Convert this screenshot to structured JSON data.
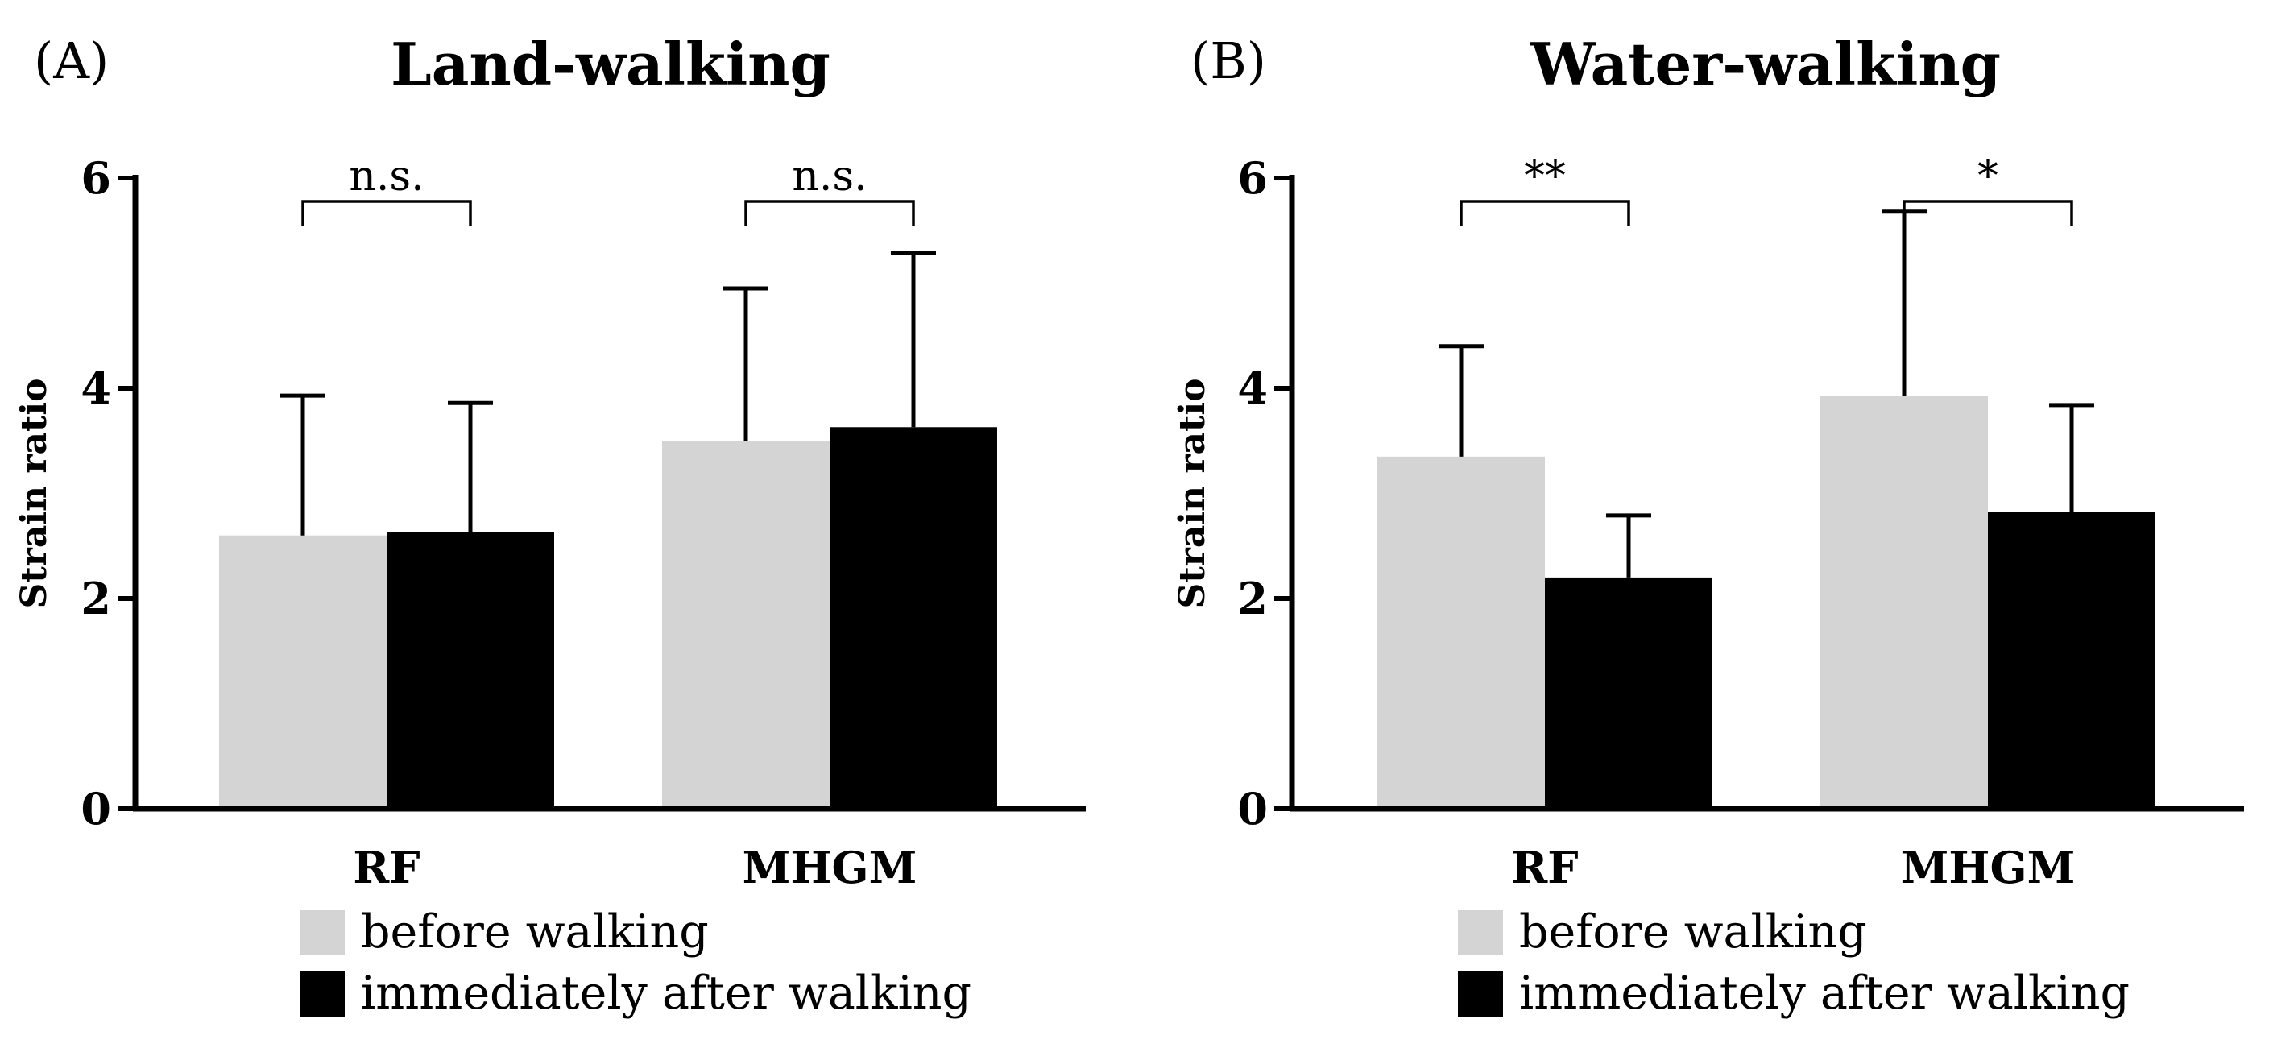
{
  "colors": {
    "before": "#d4d4d4",
    "after": "#000000",
    "axis": "#000000"
  },
  "legend": [
    {
      "label": "before walking",
      "color": "#d4d4d4"
    },
    {
      "label": "immediately after walking",
      "color": "#000000"
    }
  ],
  "chart_data": [
    {
      "type": "bar",
      "panel": "(A)",
      "title": "Land-walking",
      "xlabel": "",
      "ylabel": "Strain ratio",
      "ylim": [
        0,
        6
      ],
      "yticks": [
        0,
        2,
        4,
        6
      ],
      "categories": [
        "RF",
        "MHGM"
      ],
      "series": [
        {
          "name": "before walking",
          "values": [
            2.6,
            3.5
          ],
          "error": [
            1.33,
            1.45
          ]
        },
        {
          "name": "immediately after walking",
          "values": [
            2.63,
            3.63
          ],
          "error": [
            1.23,
            1.66
          ]
        }
      ],
      "significance": [
        "n.s.",
        "n.s."
      ],
      "grid": false,
      "legend_position": "bottom"
    },
    {
      "type": "bar",
      "panel": "(B)",
      "title": "Water-walking",
      "xlabel": "",
      "ylabel": "Strain ratio",
      "ylim": [
        0,
        6
      ],
      "yticks": [
        0,
        2,
        4,
        6
      ],
      "categories": [
        "RF",
        "MHGM"
      ],
      "series": [
        {
          "name": "before walking",
          "values": [
            3.35,
            3.93
          ],
          "error": [
            1.05,
            1.75
          ]
        },
        {
          "name": "immediately after walking",
          "values": [
            2.2,
            2.82
          ],
          "error": [
            0.59,
            1.02
          ]
        }
      ],
      "significance": [
        "**",
        "*"
      ],
      "grid": false,
      "legend_position": "bottom"
    }
  ]
}
